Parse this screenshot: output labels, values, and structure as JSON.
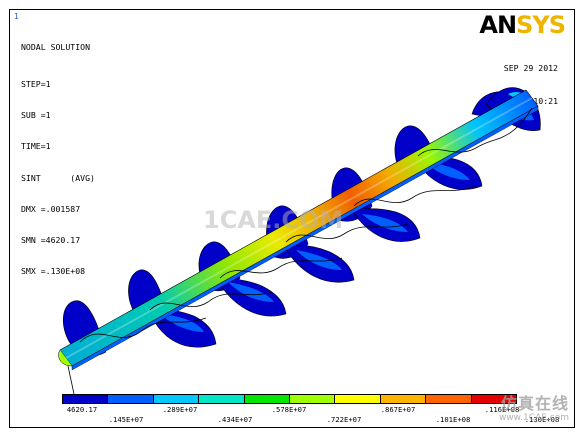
{
  "window_number": "1",
  "info": {
    "title": "NODAL SOLUTION",
    "step": "STEP=1",
    "sub": "SUB =1",
    "time": "TIME=1",
    "sint": "SINT      (AVG)",
    "dmx": "DMX =.001587",
    "smn": "SMN =4620.17",
    "smx": "SMX =.130E+08"
  },
  "brand": {
    "logo_prefix": "AN",
    "logo_suffix": "SYS"
  },
  "timestamp": {
    "date": "SEP 29 2012",
    "time": "14:10:21"
  },
  "legend": {
    "colors": [
      "#0000c8",
      "#0060ff",
      "#00c8ff",
      "#00e6c8",
      "#00e600",
      "#a0ff00",
      "#ffff00",
      "#ffb400",
      "#ff6400",
      "#e60000"
    ],
    "labels_top": [
      "4620.17",
      ".289E+07",
      ".578E+07",
      ".867E+07",
      ".116E+08"
    ],
    "labels_bottom": [
      ".145E+07",
      ".434E+07",
      ".722E+07",
      ".101E+08",
      ".130E+08"
    ]
  },
  "watermark": {
    "center": "1CAE.COM",
    "corner_cn": "仿真在线",
    "corner_url": "www.1CAE.com"
  }
}
